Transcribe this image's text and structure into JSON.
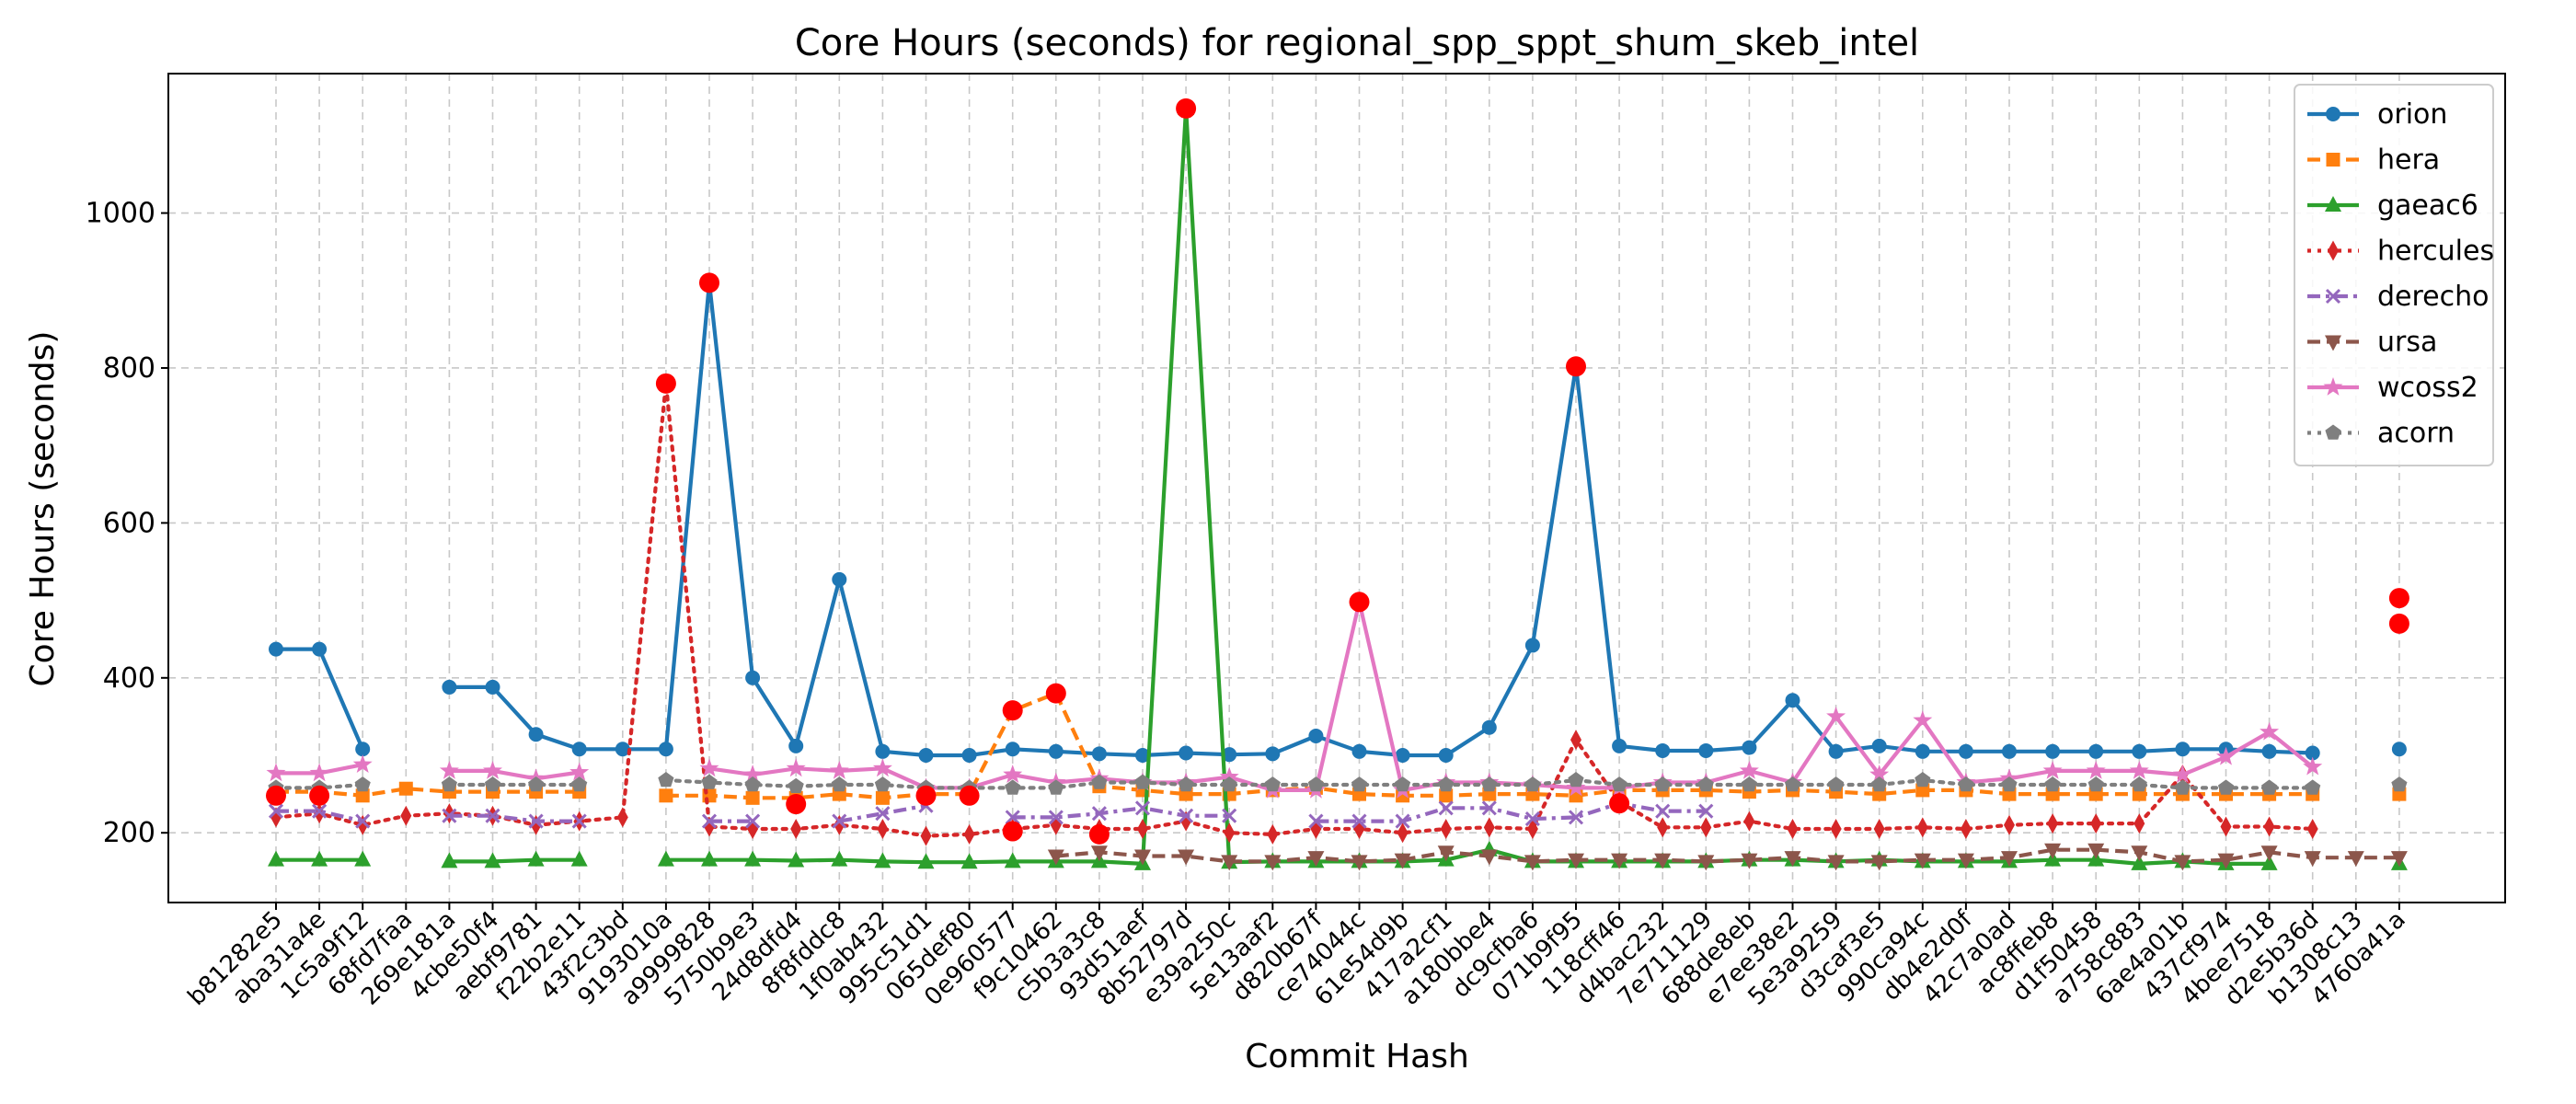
{
  "chart_data": {
    "type": "line",
    "title": "Core Hours (seconds) for regional_spp_sppt_shum_skeb_intel",
    "xlabel": "Commit Hash",
    "ylabel": "Core Hours (seconds)",
    "ylim": [
      110,
      1180
    ],
    "yticks": [
      200,
      400,
      600,
      800,
      1000
    ],
    "grid": true,
    "legend_position": "top-right",
    "categories": [
      "b81282e5",
      "aba31a4e",
      "1c5a9f12",
      "68fd7faa",
      "269e181a",
      "4cbe50f4",
      "aebf9781",
      "f22b2e11",
      "43f2c3bd",
      "9193010a",
      "a9999828",
      "5750b9e3",
      "24d8dfd4",
      "8f8fddc8",
      "1f0ab432",
      "995c51d1",
      "065def80",
      "0e960577",
      "f9c10462",
      "c5b3a3c8",
      "93d51aef",
      "8b52797d",
      "e39a250c",
      "5e13aaf2",
      "d820b67f",
      "ce74044c",
      "61e54d9b",
      "417a2cf1",
      "a180bbe4",
      "dc9cfba6",
      "071b9f95",
      "118cff46",
      "d4bac232",
      "7e711129",
      "688de8eb",
      "e7ee38e2",
      "5e3a9259",
      "d3caf3e5",
      "990ca94c",
      "db4e2d0f",
      "42c7a0ad",
      "ac8ffeb8",
      "d1f50458",
      "a758c883",
      "6ae4a01b",
      "437cf974",
      "4bee7518",
      "d2e5b36d",
      "b1308c13",
      "4760a41a"
    ],
    "series": [
      {
        "name": "orion",
        "color": "#1f77b4",
        "line_style": "solid",
        "marker": "circle",
        "values": [
          437,
          437,
          308,
          null,
          388,
          388,
          327,
          308,
          308,
          308,
          910,
          400,
          312,
          527,
          305,
          300,
          300,
          308,
          305,
          302,
          300,
          303,
          301,
          302,
          325,
          305,
          300,
          300,
          336,
          442,
          802,
          312,
          306,
          306,
          310,
          371,
          305,
          312,
          305,
          305,
          305,
          305,
          305,
          305,
          308,
          308,
          305,
          303,
          null,
          308
        ]
      },
      {
        "name": "hera",
        "color": "#ff7f0e",
        "line_style": "dashed",
        "marker": "square",
        "values": [
          253,
          253,
          248,
          257,
          253,
          253,
          253,
          253,
          null,
          248,
          248,
          245,
          245,
          250,
          245,
          250,
          250,
          358,
          380,
          260,
          255,
          250,
          250,
          255,
          258,
          250,
          248,
          248,
          250,
          250,
          248,
          255,
          255,
          255,
          253,
          255,
          253,
          250,
          255,
          255,
          250,
          250,
          250,
          250,
          250,
          250,
          250,
          250,
          null,
          250
        ]
      },
      {
        "name": "gaeac6",
        "color": "#2ca02c",
        "line_style": "solid",
        "marker": "triangle-up",
        "values": [
          165,
          165,
          165,
          null,
          163,
          163,
          165,
          165,
          null,
          165,
          165,
          165,
          164,
          165,
          163,
          162,
          162,
          163,
          163,
          163,
          160,
          1135,
          162,
          163,
          163,
          163,
          163,
          165,
          178,
          163,
          163,
          163,
          163,
          163,
          165,
          165,
          163,
          165,
          163,
          163,
          163,
          165,
          165,
          160,
          163,
          160,
          160,
          null,
          null,
          160
        ]
      },
      {
        "name": "hercules",
        "color": "#d62728",
        "line_style": "dotted",
        "marker": "thin-diamond",
        "values": [
          220,
          225,
          210,
          222,
          225,
          222,
          210,
          215,
          220,
          780,
          208,
          205,
          205,
          210,
          205,
          196,
          198,
          205,
          210,
          205,
          205,
          215,
          200,
          198,
          205,
          205,
          200,
          205,
          207,
          205,
          320,
          240,
          207,
          207,
          215,
          205,
          205,
          205,
          207,
          205,
          210,
          212,
          212,
          212,
          275,
          208,
          208,
          205,
          null,
          null
        ]
      },
      {
        "name": "derecho",
        "color": "#9467bd",
        "line_style": "dashdot",
        "marker": "x",
        "values": [
          228,
          228,
          215,
          null,
          222,
          222,
          215,
          215,
          null,
          null,
          215,
          215,
          null,
          215,
          225,
          235,
          null,
          220,
          220,
          225,
          232,
          222,
          222,
          null,
          215,
          215,
          215,
          232,
          232,
          218,
          220,
          238,
          228,
          228,
          null,
          null,
          null,
          null,
          null,
          null,
          null,
          null,
          null,
          null,
          null,
          null,
          null,
          null,
          null,
          null
        ]
      },
      {
        "name": "ursa",
        "color": "#8c564b",
        "line_style": "dashed",
        "marker": "triangle-down",
        "values": [
          null,
          null,
          null,
          null,
          null,
          null,
          null,
          null,
          null,
          null,
          null,
          null,
          null,
          null,
          null,
          null,
          null,
          null,
          170,
          175,
          170,
          170,
          163,
          163,
          168,
          163,
          165,
          175,
          170,
          163,
          165,
          165,
          165,
          163,
          165,
          168,
          163,
          163,
          165,
          165,
          168,
          178,
          178,
          175,
          163,
          165,
          175,
          168,
          168,
          168
        ]
      },
      {
        "name": "wcoss2",
        "color": "#e377c2",
        "line_style": "solid",
        "marker": "star",
        "values": [
          277,
          277,
          288,
          null,
          280,
          280,
          270,
          278,
          null,
          null,
          283,
          275,
          283,
          280,
          283,
          258,
          258,
          275,
          265,
          270,
          265,
          265,
          272,
          255,
          255,
          498,
          255,
          265,
          265,
          262,
          258,
          258,
          265,
          265,
          280,
          265,
          350,
          275,
          345,
          265,
          270,
          280,
          280,
          280,
          275,
          298,
          330,
          285,
          null,
          null
        ]
      },
      {
        "name": "acorn",
        "color": "#7f7f7f",
        "line_style": "dotted",
        "marker": "pentagon",
        "values": [
          258,
          258,
          262,
          null,
          262,
          262,
          262,
          262,
          null,
          268,
          265,
          262,
          260,
          262,
          262,
          258,
          258,
          258,
          258,
          265,
          265,
          262,
          262,
          262,
          262,
          262,
          262,
          262,
          262,
          262,
          268,
          262,
          262,
          262,
          262,
          262,
          262,
          262,
          268,
          262,
          262,
          262,
          262,
          262,
          258,
          258,
          258,
          258,
          null,
          262
        ]
      }
    ],
    "highlights": [
      {
        "x": "b81282e5",
        "y": 248
      },
      {
        "x": "aba31a4e",
        "y": 248
      },
      {
        "x": "9193010a",
        "y": 780
      },
      {
        "x": "a9999828",
        "y": 910
      },
      {
        "x": "24d8dfd4",
        "y": 237
      },
      {
        "x": "995c51d1",
        "y": 248
      },
      {
        "x": "065def80",
        "y": 248
      },
      {
        "x": "0e960577",
        "y": 358
      },
      {
        "x": "0e960577",
        "y": 202
      },
      {
        "x": "f9c10462",
        "y": 380
      },
      {
        "x": "c5b3a3c8",
        "y": 198
      },
      {
        "x": "8b52797d",
        "y": 1135
      },
      {
        "x": "ce74044c",
        "y": 498
      },
      {
        "x": "071b9f95",
        "y": 802
      },
      {
        "x": "118cff46",
        "y": 238
      },
      {
        "x": "4760a41a",
        "y": 503
      },
      {
        "x": "4760a41a",
        "y": 470
      }
    ],
    "highlight_color": "#ff0000"
  }
}
